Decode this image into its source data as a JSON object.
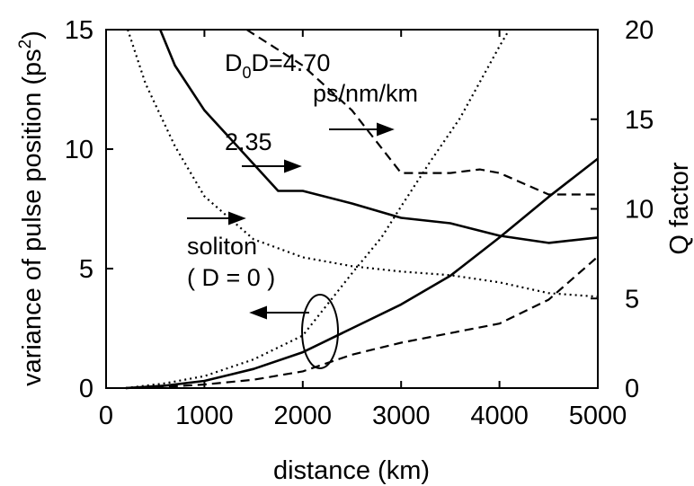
{
  "chart_data": {
    "type": "line",
    "xlabel": "distance (km)",
    "ylabel_left": "variance of pulse position (ps",
    "ylabel_left_sup": "2",
    "ylabel_left_close": ")",
    "ylabel_right": "Q factor",
    "xlim": [
      0,
      5000
    ],
    "ylim_left": [
      0,
      15
    ],
    "ylim_right": [
      0,
      20
    ],
    "x_ticks": [
      "0",
      "1000",
      "2000",
      "3000",
      "4000",
      "5000"
    ],
    "y_left_ticks": [
      "0",
      "5",
      "10",
      "15"
    ],
    "y_right_ticks": [
      "0",
      "5",
      "10",
      "15",
      "20"
    ],
    "series": [
      {
        "name": "D0D=4.70 ps/nm/km",
        "style": "dashed",
        "axis": "left",
        "x": [
          200,
          600,
          1000,
          1500,
          2000,
          2500,
          3000,
          3500,
          4000,
          4500,
          5000
        ],
        "y": [
          0.0,
          0.05,
          0.15,
          0.35,
          0.7,
          1.4,
          1.9,
          2.3,
          2.7,
          3.7,
          5.5
        ]
      },
      {
        "name": "2.35",
        "style": "solid",
        "axis": "left",
        "x": [
          200,
          600,
          1000,
          1500,
          2000,
          2500,
          3000,
          3500,
          4000,
          4500,
          5000
        ],
        "y": [
          0.0,
          0.1,
          0.3,
          0.8,
          1.5,
          2.5,
          3.5,
          4.7,
          6.3,
          8.0,
          9.6
        ]
      },
      {
        "name": "soliton (D = 0)",
        "style": "dotted",
        "axis": "left",
        "x": [
          200,
          600,
          1000,
          1500,
          2000,
          2500,
          2800,
          3000,
          3300,
          3600,
          4000,
          4100
        ],
        "y": [
          0.0,
          0.2,
          0.5,
          1.2,
          2.2,
          4.8,
          6.3,
          7.6,
          9.5,
          11.3,
          14.3,
          15.0
        ]
      },
      {
        "name": "D0D=4.70 ps/nm/km",
        "style": "dashed",
        "axis": "right",
        "x": [
          1430,
          2000,
          2500,
          3000,
          3500,
          3800,
          4000,
          4500,
          5000
        ],
        "y": [
          20.0,
          18.0,
          15.5,
          12.0,
          12.0,
          12.2,
          12.0,
          10.8,
          10.8
        ]
      },
      {
        "name": "2.35",
        "style": "solid",
        "axis": "right",
        "x": [
          550,
          700,
          1000,
          1500,
          1750,
          2000,
          2500,
          3000,
          3500,
          4000,
          4500,
          5000
        ],
        "y": [
          20.0,
          18.0,
          15.5,
          12.5,
          11.0,
          11.0,
          10.3,
          9.5,
          9.2,
          8.5,
          8.1,
          8.4
        ]
      },
      {
        "name": "soliton (D = 0)",
        "style": "dotted",
        "axis": "right",
        "x": [
          220,
          400,
          700,
          1000,
          1500,
          2000,
          2500,
          3000,
          3500,
          4000,
          4500,
          5000
        ],
        "y": [
          20.0,
          17.0,
          13.5,
          10.7,
          8.3,
          7.3,
          6.8,
          6.5,
          6.3,
          5.9,
          5.3,
          5.1
        ]
      }
    ],
    "annotations": [
      {
        "id": "a1",
        "text": "D",
        "sub": "0",
        "text2": "D=4.70"
      },
      {
        "id": "a2",
        "text": "ps/nm/km"
      },
      {
        "id": "a3",
        "text": "2.35"
      },
      {
        "id": "a4",
        "text": "soliton"
      },
      {
        "id": "a5",
        "text": "( D = 0 )"
      }
    ],
    "grid": false
  }
}
